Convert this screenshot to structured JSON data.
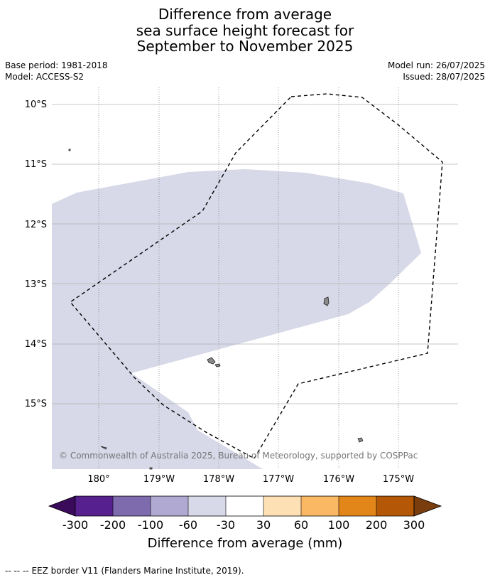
{
  "title": {
    "line1": "Difference from average",
    "line2": "sea surface height forecast for",
    "line3": "September to November 2025"
  },
  "meta": {
    "base_period": "Base period: 1981-2018",
    "model": "Model: ACCESS-S2",
    "model_run": "Model run: 26/07/2025",
    "issued": "Issued: 28/07/2025"
  },
  "map": {
    "lat_labels": [
      "10°S",
      "11°S",
      "12°S",
      "13°S",
      "14°S",
      "15°S"
    ],
    "lon_labels": [
      "180°",
      "179°W",
      "178°W",
      "177°W",
      "176°W",
      "175°W"
    ],
    "copyright": "© Commonwealth of Australia 2025, Bureau of Meteorology, supported by COSPPac",
    "anomaly_fill_color": "#d7d8e8",
    "eez_line_color": "#000000"
  },
  "colorbar": {
    "title": "Difference from average (mm)",
    "tick_labels": [
      "-300",
      "-200",
      "-100",
      "-60",
      "-30",
      "30",
      "60",
      "100",
      "200",
      "300"
    ],
    "low_extend_color": "#3a0a5b",
    "high_extend_color": "#7a3e0e",
    "colors": [
      "#56208e",
      "#7e6bad",
      "#b0aad2",
      "#d7d8e8",
      "#ffffff",
      "#fee0b5",
      "#fbb864",
      "#e2861a",
      "#b45707"
    ]
  },
  "footer": {
    "legend_symbol": "--  --  --",
    "legend_text": "EEZ border V11 (Flanders Marine Institute, 2019)."
  }
}
